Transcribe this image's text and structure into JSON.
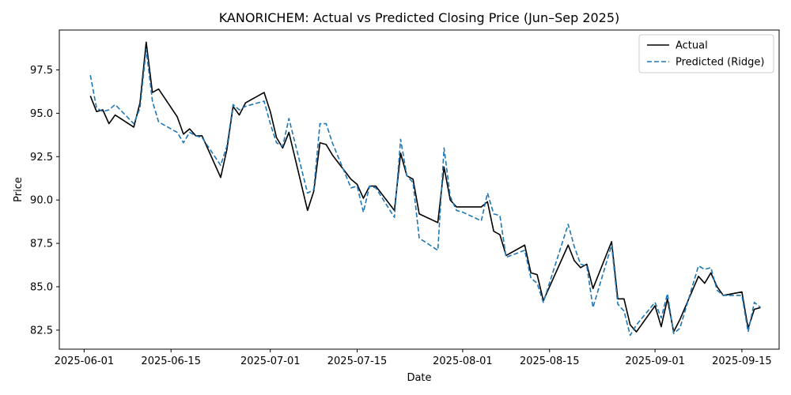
{
  "chart_data": {
    "type": "line",
    "title": "KANORICHEM: Actual vs Predicted Closing Price (Jun–Sep 2025)",
    "xlabel": "Date",
    "ylabel": "Price",
    "xlim": [
      "2025-05-28",
      "2025-09-21"
    ],
    "ylim": [
      81.4,
      99.8
    ],
    "x_ticks": [
      "2025-06-01",
      "2025-06-15",
      "2025-07-01",
      "2025-07-15",
      "2025-08-01",
      "2025-08-15",
      "2025-09-01",
      "2025-09-15"
    ],
    "y_ticks": [
      82.5,
      85.0,
      87.5,
      90.0,
      92.5,
      95.0,
      97.5
    ],
    "y_tick_labels": [
      "82.5",
      "85.0",
      "87.5",
      "90.0",
      "92.5",
      "95.0",
      "97.5"
    ],
    "grid": false,
    "legend_position": "top-right",
    "x": [
      "2025-06-02",
      "2025-06-03",
      "2025-06-04",
      "2025-06-05",
      "2025-06-06",
      "2025-06-09",
      "2025-06-10",
      "2025-06-11",
      "2025-06-12",
      "2025-06-13",
      "2025-06-16",
      "2025-06-17",
      "2025-06-18",
      "2025-06-19",
      "2025-06-20",
      "2025-06-23",
      "2025-06-24",
      "2025-06-25",
      "2025-06-26",
      "2025-06-27",
      "2025-06-30",
      "2025-07-01",
      "2025-07-02",
      "2025-07-03",
      "2025-07-04",
      "2025-07-07",
      "2025-07-08",
      "2025-07-09",
      "2025-07-10",
      "2025-07-11",
      "2025-07-14",
      "2025-07-15",
      "2025-07-16",
      "2025-07-17",
      "2025-07-18",
      "2025-07-21",
      "2025-07-22",
      "2025-07-23",
      "2025-07-24",
      "2025-07-25",
      "2025-07-28",
      "2025-07-29",
      "2025-07-30",
      "2025-07-31",
      "2025-08-01",
      "2025-08-04",
      "2025-08-05",
      "2025-08-06",
      "2025-08-07",
      "2025-08-08",
      "2025-08-11",
      "2025-08-12",
      "2025-08-13",
      "2025-08-14",
      "2025-08-18",
      "2025-08-19",
      "2025-08-20",
      "2025-08-21",
      "2025-08-22",
      "2025-08-25",
      "2025-08-26",
      "2025-08-27",
      "2025-08-28",
      "2025-08-29",
      "2025-09-01",
      "2025-09-02",
      "2025-09-03",
      "2025-09-04",
      "2025-09-05",
      "2025-09-08",
      "2025-09-09",
      "2025-09-10",
      "2025-09-11",
      "2025-09-12",
      "2025-09-15",
      "2025-09-16",
      "2025-09-17",
      "2025-09-18"
    ],
    "series": [
      {
        "name": "Actual",
        "color": "#000000",
        "dash": "solid",
        "values": [
          96.0,
          95.1,
          95.2,
          94.4,
          94.9,
          94.2,
          95.6,
          99.1,
          96.2,
          96.4,
          94.8,
          93.8,
          94.1,
          93.7,
          93.7,
          91.3,
          92.9,
          95.4,
          94.9,
          95.6,
          96.2,
          95.1,
          93.6,
          93.0,
          93.9,
          89.4,
          90.5,
          93.3,
          93.2,
          92.6,
          91.2,
          90.9,
          90.1,
          90.8,
          90.8,
          89.4,
          92.7,
          91.4,
          91.2,
          89.2,
          88.7,
          91.9,
          90.0,
          89.6,
          89.6,
          89.6,
          89.9,
          88.2,
          88.0,
          86.8,
          87.4,
          85.8,
          85.7,
          84.2,
          87.4,
          86.5,
          86.1,
          86.3,
          84.9,
          87.6,
          84.3,
          84.3,
          82.8,
          82.4,
          83.9,
          82.7,
          84.3,
          82.4,
          83.1,
          85.6,
          85.2,
          85.8,
          85.0,
          84.5,
          84.7,
          82.6,
          83.7,
          83.8
        ]
      },
      {
        "name": "Predicted (Ridge)",
        "color": "#1f77b4",
        "dash": "dashed",
        "values": [
          97.2,
          95.3,
          95.1,
          95.2,
          95.5,
          94.4,
          95.3,
          98.7,
          95.7,
          94.5,
          93.9,
          93.3,
          93.9,
          93.7,
          93.6,
          92.0,
          93.1,
          95.5,
          95.2,
          95.4,
          95.7,
          94.4,
          93.3,
          93.1,
          94.7,
          90.4,
          90.6,
          94.4,
          94.4,
          93.3,
          90.7,
          90.8,
          89.3,
          90.8,
          90.7,
          89.0,
          93.5,
          91.4,
          91.0,
          87.8,
          87.1,
          93.0,
          90.2,
          89.4,
          89.3,
          88.8,
          90.4,
          89.2,
          89.1,
          86.7,
          87.1,
          85.5,
          85.2,
          84.1,
          88.6,
          87.3,
          86.3,
          86.2,
          83.8,
          87.4,
          84.0,
          83.6,
          82.2,
          82.8,
          84.1,
          83.2,
          84.6,
          82.3,
          82.6,
          86.2,
          86.0,
          86.1,
          84.8,
          84.5,
          84.5,
          82.4,
          84.1,
          83.8
        ]
      }
    ]
  }
}
